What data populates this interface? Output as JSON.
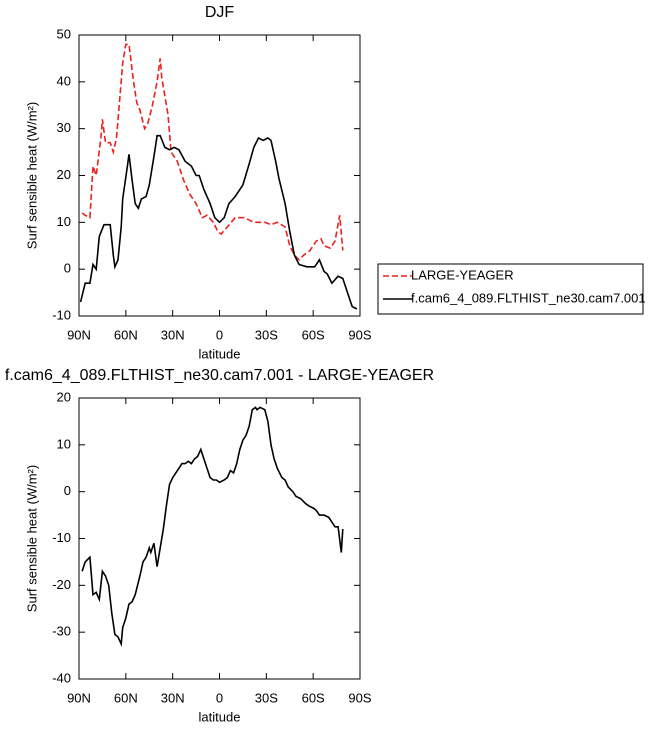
{
  "chart_data": [
    {
      "type": "line",
      "title": "DJF",
      "xlabel": "latitude",
      "ylabel": "Surf sensible heat (W/m²)",
      "xlim": [
        90,
        -90
      ],
      "ylim": [
        -10,
        50
      ],
      "xticks": [
        {
          "value": 90,
          "label": "90N"
        },
        {
          "value": 60,
          "label": "60N"
        },
        {
          "value": 30,
          "label": "30N"
        },
        0,
        {
          "value": -30,
          "label": "30S"
        },
        {
          "value": -60,
          "label": "60S"
        },
        {
          "value": -90,
          "label": "90S"
        }
      ],
      "yticks": [
        -10,
        0,
        10,
        20,
        30,
        40,
        50
      ],
      "legend": "right",
      "series": [
        {
          "name": "LARGE-YEAGER",
          "color": "#e8221f",
          "line_style": "dashed",
          "x": [
            88,
            86,
            83,
            81,
            79,
            76,
            75,
            73,
            70,
            68,
            66,
            64,
            62,
            60,
            58,
            55,
            53,
            51,
            48,
            46,
            43,
            40,
            38,
            37,
            33,
            31,
            27,
            23,
            19,
            15,
            11,
            8,
            4,
            1,
            -1,
            -5,
            -10,
            -16,
            -22,
            -29,
            -33,
            -37,
            -42,
            -45,
            -48,
            -51,
            -54,
            -58,
            -62,
            -65,
            -67,
            -71,
            -74,
            -77,
            -79
          ],
          "values": [
            12,
            11.5,
            11,
            22,
            20,
            28,
            32,
            27,
            27,
            25,
            28,
            36,
            44,
            48,
            48,
            40,
            35.5,
            34,
            30,
            31,
            35,
            40,
            45,
            41,
            33,
            25,
            23,
            19,
            16,
            14,
            11,
            11.5,
            10,
            8,
            7.5,
            9,
            11,
            11,
            10,
            10,
            9.5,
            10,
            9,
            5,
            3,
            2,
            3,
            4,
            6,
            6.5,
            5,
            4.5,
            6,
            11.5,
            4
          ]
        },
        {
          "name": "f.cam6_4_089.FLTHIST_ne30.cam7.001",
          "color": "#000000",
          "line_style": "solid",
          "x": [
            89,
            86,
            83,
            81,
            79,
            77,
            74,
            70,
            68,
            67,
            65,
            63,
            62,
            59,
            58,
            56,
            54,
            52,
            50,
            47,
            45,
            42,
            40,
            38,
            35,
            32,
            29,
            26,
            22,
            18,
            15,
            13,
            10,
            6,
            3,
            0,
            -3,
            -6,
            -10,
            -15,
            -19,
            -22,
            -25,
            -28,
            -31,
            -33,
            -36,
            -38,
            -42,
            -45,
            -48,
            -51,
            -56,
            -61,
            -64,
            -67,
            -69,
            -72,
            -76,
            -79,
            -82,
            -85,
            -88
          ],
          "values": [
            -7,
            -3,
            -3,
            1,
            0,
            7,
            9.5,
            9.5,
            3,
            0.5,
            2,
            9,
            15,
            22,
            24.5,
            19,
            14,
            13,
            15,
            15.5,
            18,
            24,
            28.5,
            28.5,
            26,
            25.5,
            26,
            25.5,
            23,
            22,
            20,
            20,
            17,
            14,
            11,
            10,
            11,
            14,
            15.5,
            18,
            22.5,
            26,
            28,
            27.5,
            28,
            27.5,
            23,
            19.5,
            14,
            8,
            3,
            1,
            0.5,
            0.5,
            2,
            -0.5,
            -1,
            -3,
            -1.5,
            -2,
            -5,
            -8,
            -8.5
          ]
        }
      ]
    },
    {
      "type": "line",
      "title": "f.cam6_4_089.FLTHIST_ne30.cam7.001 - LARGE-YEAGER",
      "xlabel": "latitude",
      "ylabel": "Surf sensible heat (W/m²)",
      "xlim": [
        90,
        -90
      ],
      "ylim": [
        -40,
        20
      ],
      "xticks": [
        {
          "value": 90,
          "label": "90N"
        },
        {
          "value": 60,
          "label": "60N"
        },
        {
          "value": 30,
          "label": "30N"
        },
        0,
        {
          "value": -30,
          "label": "30S"
        },
        {
          "value": -60,
          "label": "60S"
        },
        {
          "value": -90,
          "label": "90S"
        }
      ],
      "yticks": [
        -40,
        -30,
        -20,
        -10,
        0,
        10,
        20
      ],
      "series": [
        {
          "color": "#000000",
          "line_style": "solid",
          "x": [
            88,
            86,
            83,
            81,
            79,
            77,
            75,
            73,
            71,
            69,
            67,
            65,
            63,
            62,
            60,
            58,
            56,
            54,
            51,
            49,
            47,
            45,
            44,
            42,
            40,
            38,
            36,
            34,
            32,
            30,
            28,
            26,
            24,
            22,
            20,
            18,
            16,
            14,
            12,
            10,
            8,
            6,
            4,
            2,
            0,
            -3,
            -5,
            -7,
            -9,
            -11,
            -13,
            -15,
            -17,
            -19,
            -21,
            -23,
            -24,
            -26,
            -29,
            -31,
            -33,
            -35,
            -37,
            -40,
            -42,
            -44,
            -47,
            -49,
            -52,
            -55,
            -57,
            -60,
            -62,
            -64,
            -67,
            -70,
            -72,
            -74,
            -76,
            -78,
            -79
          ],
          "values": [
            -17,
            -15,
            -14,
            -22,
            -21.5,
            -23,
            -17,
            -18,
            -20,
            -26,
            -30.5,
            -31,
            -32.5,
            -29,
            -27,
            -24,
            -23.5,
            -22,
            -18,
            -15,
            -14,
            -12,
            -13,
            -11,
            -16,
            -12,
            -8,
            -3,
            1.5,
            3,
            4,
            5,
            6,
            6,
            6.5,
            6,
            7,
            7.5,
            9,
            7,
            5,
            3,
            2.5,
            2.5,
            2,
            2.5,
            3,
            4.5,
            4,
            6,
            9,
            11,
            12,
            14,
            17.5,
            18,
            17.5,
            18,
            17.5,
            15,
            10,
            7,
            5,
            3,
            2.5,
            1,
            0,
            -1,
            -1.5,
            -2.5,
            -3,
            -3.5,
            -4,
            -5,
            -5,
            -5.5,
            -6.5,
            -7.5,
            -7.5,
            -13,
            -8
          ]
        }
      ]
    }
  ]
}
